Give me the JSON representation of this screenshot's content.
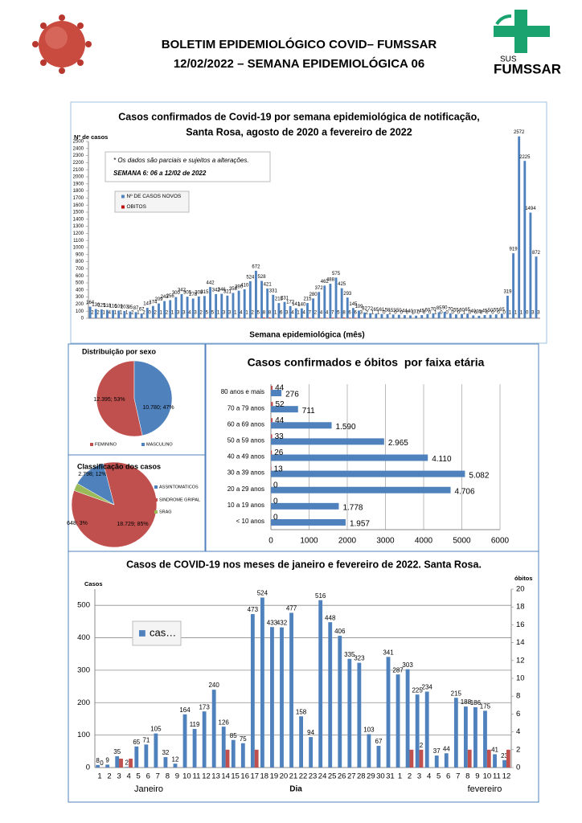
{
  "header": {
    "title_line1": "BOLETIM EPIDEMIOLÓGICO COVID– FUMSSAR",
    "title_line2": "12/02/2022 – SEMANA EPIDEMIOLÓGICA 06"
  },
  "logo": {
    "sus": "SUS",
    "name": "FUMSSAR"
  },
  "chart_data": [
    {
      "type": "bar",
      "title": [
        "Casos confirmados de Covid-19 por semana epidemiológica de notificação,",
        "Santa Rosa, agosto de 2020 a fevereiro de 2022"
      ],
      "y_label": "Nº de casos",
      "x_label": "Semana epidemiológica (mês)",
      "notes": [
        "* Os dados são parciais e sujeitos a alterações.",
        "SEMANA 6: 06 a 12/02 de 2022"
      ],
      "legend": "upper left",
      "grid": false,
      "ylim": [
        0,
        2500
      ],
      "yticks": [
        0,
        100,
        200,
        300,
        400,
        500,
        600,
        700,
        800,
        900,
        1000,
        1100,
        1200,
        1300,
        1400,
        1500,
        1600,
        1700,
        1800,
        1900,
        2000,
        2100,
        2200,
        2300,
        2400,
        2500
      ],
      "series": [
        {
          "name": "Nº DE CASOS NOVOS",
          "color": "#4f81bd",
          "values": [
            164,
            130,
            125,
            118,
            116,
            109,
            103,
            95,
            87,
            67,
            147,
            174,
            209,
            243,
            256,
            300,
            342,
            305,
            278,
            308,
            315,
            442,
            342,
            346,
            321,
            358,
            390,
            410,
            524,
            672,
            528,
            421,
            331,
            215,
            231,
            172,
            141,
            140,
            215,
            280,
            372,
            462,
            488,
            575,
            425,
            293,
            145,
            109,
            82,
            72,
            65,
            61,
            58,
            53,
            50,
            44,
            40,
            37,
            45,
            60,
            70,
            85,
            90,
            70,
            55,
            60,
            65,
            40,
            35,
            45,
            50,
            55,
            65,
            319,
            919,
            2572,
            2225,
            1494,
            872
          ]
        },
        {
          "name": "OBITOS",
          "color": "#c00000",
          "values": [
            2,
            2,
            1,
            4,
            1,
            1,
            1,
            2,
            1,
            2,
            0,
            2,
            1,
            2,
            1,
            3,
            3,
            4,
            3,
            2,
            5,
            5,
            1,
            3,
            3,
            1,
            4,
            1,
            2,
            5,
            8,
            8,
            1,
            6,
            3,
            4,
            1,
            4,
            7,
            2,
            4,
            4,
            7,
            5,
            8,
            6,
            6,
            3,
            2,
            1,
            1,
            0,
            1,
            0,
            0,
            0,
            1,
            0,
            0,
            0,
            1,
            0,
            0,
            0,
            0,
            1,
            0,
            0,
            0,
            0,
            0,
            0,
            0,
            1,
            1,
            1,
            0,
            3,
            3
          ]
        }
      ]
    },
    {
      "type": "pie",
      "title": "Distribuição por sexo",
      "legend": "bottom",
      "categories": [
        "FEMININO",
        "MASCULINO"
      ],
      "values": [
        12395,
        10780
      ],
      "value_labels": [
        "12.395; 53%",
        "10.780; 47%"
      ],
      "colors": [
        "#c0504d",
        "#4f81bd"
      ]
    },
    {
      "type": "pie",
      "title": "Classificação dos casos",
      "legend": "right",
      "categories": [
        "ASSINTOMATICOS",
        "SINDROME GRIPAL",
        "SRAG"
      ],
      "values": [
        2798,
        18729,
        648
      ],
      "value_labels": [
        "2.798; 12%",
        "18.729; 85%",
        "648; 3%"
      ],
      "colors": [
        "#4f81bd",
        "#c0504d",
        "#9bbb59"
      ]
    },
    {
      "type": "barh",
      "title": "Casos confirmados e óbitos  por faixa etária",
      "grid": true,
      "categories": [
        "80 anos e mais",
        "70 a 79 anos",
        "60 a 69 anos",
        "50 a 59 anos",
        "40 a 49 anos",
        "30 a 39 anos",
        "20 a 29 anos",
        "10 a 19 anos",
        "< 10 anos"
      ],
      "xlim": [
        0,
        6000
      ],
      "xticks": [
        0,
        1000,
        2000,
        3000,
        4000,
        5000,
        6000
      ],
      "series": [
        {
          "color": "#4f81bd",
          "values": [
            276,
            711,
            1590,
            2965,
            4110,
            5082,
            4706,
            1778,
            1957
          ],
          "value_labels": [
            "276",
            "711",
            "1.590",
            "2.965",
            "4.110",
            "5.082",
            "4.706",
            "1.778",
            "1.957"
          ]
        },
        {
          "color": "#c0504d",
          "values": [
            44,
            52,
            44,
            33,
            26,
            13,
            0,
            0,
            0
          ]
        }
      ]
    },
    {
      "type": "bar",
      "title": [
        "Casos de COVID-19 nos meses de janeiro e fevereiro de 2022. Santa Rosa."
      ],
      "y_label": "Casos",
      "y2_label": "óbitos",
      "x_label": "Dia",
      "group_labels": [
        "Janeiro",
        "fevereiro"
      ],
      "legend": "upper left",
      "grid": true,
      "categories": [
        "1",
        "2",
        "3",
        "4",
        "5",
        "6",
        "7",
        "8",
        "9",
        "10",
        "11",
        "12",
        "13",
        "14",
        "15",
        "16",
        "17",
        "18",
        "19",
        "20",
        "21",
        "22",
        "23",
        "24",
        "25",
        "26",
        "27",
        "28",
        "29",
        "30",
        "31",
        "1",
        "2",
        "3",
        "4",
        "5",
        "6",
        "7",
        "8",
        "9",
        "10",
        "11",
        "12"
      ],
      "ylim": [
        0,
        550
      ],
      "yticks": [
        0,
        100,
        200,
        300,
        400,
        500
      ],
      "y2lim": [
        0,
        20
      ],
      "y2ticks": [
        0,
        2,
        4,
        6,
        8,
        10,
        12,
        14,
        16,
        18,
        20
      ],
      "series": [
        {
          "name": "cas…",
          "color": "#4f81bd",
          "values": [
            8,
            9,
            35,
            2,
            65,
            71,
            105,
            32,
            12,
            164,
            119,
            173,
            240,
            126,
            85,
            75,
            473,
            524,
            433,
            432,
            477,
            158,
            94,
            516,
            448,
            406,
            335,
            323,
            103,
            67,
            341,
            287,
            303,
            225,
            234,
            37,
            44,
            215,
            188,
            186,
            175,
            41,
            23
          ]
        },
        {
          "color": "#c0504d",
          "axis": "y2",
          "values": [
            0,
            0,
            1,
            1,
            0,
            0,
            0,
            0,
            0,
            0,
            0,
            0,
            0,
            2,
            0,
            0,
            2,
            0,
            0,
            0,
            0,
            0,
            0,
            0,
            0,
            0,
            0,
            0,
            0,
            0,
            0,
            0,
            2,
            2,
            0,
            0,
            0,
            0,
            2,
            0,
            2,
            0,
            2
          ],
          "value_labels": [
            "0",
            null,
            null,
            null,
            null,
            null,
            null,
            null,
            null,
            null,
            null,
            null,
            null,
            null,
            null,
            null,
            null,
            null,
            null,
            null,
            null,
            null,
            null,
            null,
            null,
            null,
            null,
            null,
            null,
            null,
            null,
            null,
            null,
            "2",
            null,
            null,
            null,
            null,
            null,
            null,
            null,
            null,
            null
          ]
        }
      ]
    }
  ]
}
